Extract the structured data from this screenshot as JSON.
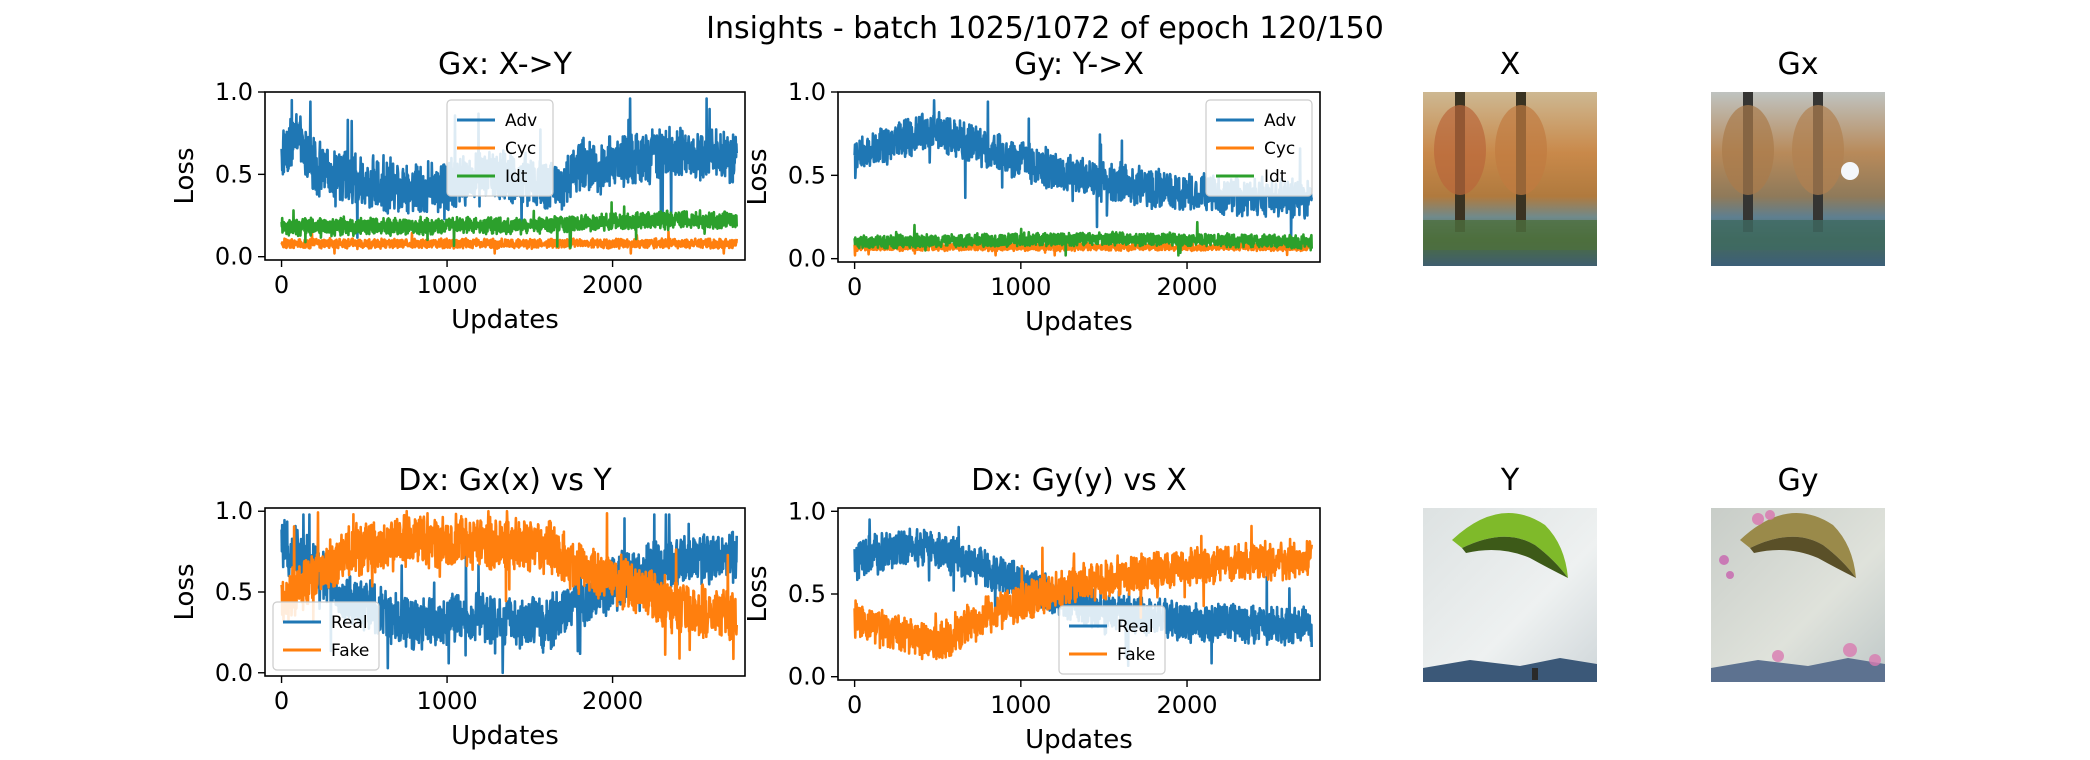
{
  "figure": {
    "suptitle": "Insights - batch 1025/1072 of epoch 120/150"
  },
  "colors": {
    "blue": "#1f77b4",
    "orange": "#ff7f0e",
    "green": "#2ca02c"
  },
  "images": {
    "x": {
      "title": "X"
    },
    "gx": {
      "title": "Gx"
    },
    "y": {
      "title": "Y"
    },
    "gy": {
      "title": "Gy"
    }
  },
  "chart_data": [
    {
      "type": "line",
      "title": "Gx: X->Y",
      "xlabel": "Updates",
      "ylabel": "Loss",
      "xlim": [
        -100,
        2800
      ],
      "ylim": [
        -0.02,
        1.0
      ],
      "xticks": [
        0,
        1000,
        2000
      ],
      "yticks": [
        0.0,
        0.5,
        1.0
      ],
      "xtick_labels": [
        "0",
        "1000",
        "2000"
      ],
      "ytick_labels": [
        "0.0",
        "0.5",
        "1.0"
      ],
      "legend_loc": "upper-center",
      "n_points": 2750,
      "series": [
        {
          "name": "Adv",
          "color": "#1f77b4",
          "profile": [
            [
              0,
              0.62
            ],
            [
              80,
              0.72
            ],
            [
              200,
              0.55
            ],
            [
              500,
              0.45
            ],
            [
              900,
              0.42
            ],
            [
              1300,
              0.5
            ],
            [
              1500,
              0.45
            ],
            [
              1700,
              0.43
            ],
            [
              1800,
              0.55
            ],
            [
              2100,
              0.58
            ],
            [
              2300,
              0.62
            ],
            [
              2750,
              0.62
            ]
          ],
          "noise": 0.14,
          "min": 0.0,
          "max": 0.96
        },
        {
          "name": "Cyc",
          "color": "#ff7f0e",
          "profile": [
            [
              0,
              0.08
            ],
            [
              2750,
              0.08
            ]
          ],
          "noise": 0.025,
          "min": 0.02,
          "max": 0.16
        },
        {
          "name": "Idt",
          "color": "#2ca02c",
          "profile": [
            [
              0,
              0.18
            ],
            [
              1500,
              0.19
            ],
            [
              2400,
              0.23
            ],
            [
              2750,
              0.22
            ]
          ],
          "noise": 0.045,
          "min": 0.05,
          "max": 0.42
        }
      ]
    },
    {
      "type": "line",
      "title": "Gy: Y->X",
      "xlabel": "Updates",
      "ylabel": "Loss",
      "xlim": [
        -100,
        2800
      ],
      "ylim": [
        -0.02,
        1.0
      ],
      "xticks": [
        0,
        1000,
        2000
      ],
      "yticks": [
        0.0,
        0.5,
        1.0
      ],
      "xtick_labels": [
        "0",
        "1000",
        "2000"
      ],
      "ytick_labels": [
        "0.0",
        "0.5",
        "1.0"
      ],
      "legend_loc": "upper-right",
      "n_points": 2750,
      "series": [
        {
          "name": "Adv",
          "color": "#1f77b4",
          "profile": [
            [
              0,
              0.6
            ],
            [
              200,
              0.68
            ],
            [
              450,
              0.78
            ],
            [
              600,
              0.72
            ],
            [
              900,
              0.62
            ],
            [
              1300,
              0.5
            ],
            [
              1800,
              0.42
            ],
            [
              2300,
              0.38
            ],
            [
              2750,
              0.36
            ]
          ],
          "noise": 0.1,
          "min": 0.12,
          "max": 0.95
        },
        {
          "name": "Cyc",
          "color": "#ff7f0e",
          "profile": [
            [
              0,
              0.07
            ],
            [
              2750,
              0.07
            ]
          ],
          "noise": 0.02,
          "min": 0.02,
          "max": 0.3
        },
        {
          "name": "Idt",
          "color": "#2ca02c",
          "profile": [
            [
              0,
              0.1
            ],
            [
              1500,
              0.12
            ],
            [
              2750,
              0.1
            ]
          ],
          "noise": 0.035,
          "min": 0.02,
          "max": 0.45
        }
      ]
    },
    {
      "type": "line",
      "title": "Dx: Gx(x) vs Y",
      "xlabel": "Updates",
      "ylabel": "Loss",
      "xlim": [
        -100,
        2800
      ],
      "ylim": [
        -0.02,
        1.02
      ],
      "xticks": [
        0,
        1000,
        2000
      ],
      "yticks": [
        0.0,
        0.5,
        1.0
      ],
      "xtick_labels": [
        "0",
        "1000",
        "2000"
      ],
      "ytick_labels": [
        "0.0",
        "0.5",
        "1.0"
      ],
      "legend_loc": "lower-left",
      "n_points": 2750,
      "series": [
        {
          "name": "Real",
          "color": "#1f77b4",
          "profile": [
            [
              0,
              0.78
            ],
            [
              150,
              0.7
            ],
            [
              400,
              0.45
            ],
            [
              800,
              0.3
            ],
            [
              1200,
              0.35
            ],
            [
              1600,
              0.3
            ],
            [
              1800,
              0.45
            ],
            [
              2100,
              0.6
            ],
            [
              2400,
              0.7
            ],
            [
              2750,
              0.72
            ]
          ],
          "noise": 0.14,
          "min": 0.0,
          "max": 0.98
        },
        {
          "name": "Fake",
          "color": "#ff7f0e",
          "profile": [
            [
              0,
              0.45
            ],
            [
              150,
              0.55
            ],
            [
              400,
              0.75
            ],
            [
              800,
              0.82
            ],
            [
              1200,
              0.8
            ],
            [
              1600,
              0.78
            ],
            [
              1800,
              0.65
            ],
            [
              2100,
              0.55
            ],
            [
              2400,
              0.4
            ],
            [
              2750,
              0.35
            ]
          ],
          "noise": 0.14,
          "min": 0.05,
          "max": 1.0
        }
      ]
    },
    {
      "type": "line",
      "title": "Dx: Gy(y) vs X",
      "xlabel": "Updates",
      "ylabel": "Loss",
      "xlim": [
        -100,
        2800
      ],
      "ylim": [
        -0.02,
        1.02
      ],
      "xticks": [
        0,
        1000,
        2000
      ],
      "yticks": [
        0.0,
        0.5,
        1.0
      ],
      "xtick_labels": [
        "0",
        "1000",
        "2000"
      ],
      "ytick_labels": [
        "0.0",
        "0.5",
        "1.0"
      ],
      "legend_loc": "lower-center",
      "n_points": 2750,
      "series": [
        {
          "name": "Real",
          "color": "#1f77b4",
          "profile": [
            [
              0,
              0.7
            ],
            [
              300,
              0.8
            ],
            [
              550,
              0.75
            ],
            [
              900,
              0.6
            ],
            [
              1400,
              0.42
            ],
            [
              2000,
              0.33
            ],
            [
              2750,
              0.3
            ]
          ],
          "noise": 0.1,
          "min": 0.04,
          "max": 0.95
        },
        {
          "name": "Fake",
          "color": "#ff7f0e",
          "profile": [
            [
              0,
              0.35
            ],
            [
              300,
              0.25
            ],
            [
              500,
              0.2
            ],
            [
              800,
              0.38
            ],
            [
              1400,
              0.58
            ],
            [
              2000,
              0.67
            ],
            [
              2750,
              0.72
            ]
          ],
          "noise": 0.1,
          "min": 0.02,
          "max": 0.95
        }
      ]
    }
  ]
}
